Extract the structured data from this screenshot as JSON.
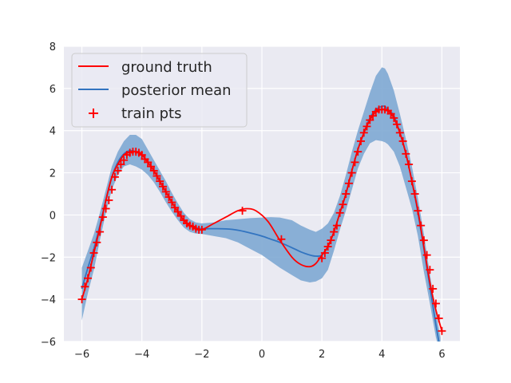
{
  "chart_data": {
    "type": "line",
    "title": "",
    "xlabel": "",
    "ylabel": "",
    "xlim": [
      -6.6,
      6.6
    ],
    "ylim": [
      -6,
      8
    ],
    "x_ticks": [
      -6,
      -4,
      -2,
      0,
      2,
      4,
      6
    ],
    "y_ticks": [
      -6,
      -4,
      -2,
      0,
      2,
      4,
      6,
      8
    ],
    "x_tick_labels": [
      "−6",
      "−4",
      "−2",
      "0",
      "2",
      "4",
      "6"
    ],
    "y_tick_labels": [
      "−6",
      "−4",
      "−2",
      "0",
      "2",
      "4",
      "6",
      "8"
    ],
    "grid": true,
    "legend_position": "top-left",
    "colors": {
      "ground_truth": "#ff0000",
      "posterior_mean": "#3274c0",
      "band": "#7ea9d3",
      "train": "#ff0000",
      "axes_bg": "#eaeaf2",
      "grid": "#ffffff"
    },
    "series": [
      {
        "name": "ground truth",
        "kind": "line",
        "x": [
          -6.0,
          -5.8,
          -5.6,
          -5.4,
          -5.2,
          -5.0,
          -4.8,
          -4.6,
          -4.4,
          -4.2,
          -4.0,
          -3.8,
          -3.6,
          -3.4,
          -3.2,
          -3.0,
          -2.8,
          -2.6,
          -2.4,
          -2.2,
          -2.0,
          -1.6,
          -1.2,
          -0.8,
          -0.5,
          -0.2,
          0.2,
          0.6,
          1.0,
          1.3,
          1.6,
          1.8,
          2.0,
          2.2,
          2.4,
          2.6,
          2.8,
          3.0,
          3.2,
          3.4,
          3.6,
          3.8,
          4.0,
          4.1,
          4.2,
          4.4,
          4.6,
          4.8,
          5.0,
          5.2,
          5.4,
          5.6,
          5.8,
          6.0
        ],
        "y": [
          -4.0,
          -3.0,
          -1.8,
          -0.6,
          0.7,
          1.8,
          2.4,
          2.85,
          3.0,
          3.0,
          2.85,
          2.5,
          2.1,
          1.6,
          1.1,
          0.6,
          0.15,
          -0.25,
          -0.5,
          -0.65,
          -0.7,
          -0.4,
          -0.1,
          0.2,
          0.3,
          0.2,
          -0.3,
          -1.2,
          -2.0,
          -2.35,
          -2.45,
          -2.3,
          -1.9,
          -1.5,
          -0.8,
          0.1,
          1.0,
          2.1,
          3.1,
          3.9,
          4.5,
          4.9,
          5.0,
          5.0,
          4.95,
          4.6,
          3.9,
          2.9,
          1.6,
          0.2,
          -1.5,
          -3.2,
          -4.5,
          -5.5
        ]
      },
      {
        "name": "posterior mean",
        "kind": "line",
        "x": [
          -6.0,
          -5.8,
          -5.6,
          -5.4,
          -5.2,
          -5.0,
          -4.8,
          -4.6,
          -4.4,
          -4.2,
          -4.0,
          -3.8,
          -3.6,
          -3.4,
          -3.2,
          -3.0,
          -2.8,
          -2.6,
          -2.4,
          -2.2,
          -2.0,
          -1.6,
          -1.2,
          -0.8,
          -0.4,
          0.0,
          0.3,
          0.6,
          1.0,
          1.3,
          1.6,
          1.8,
          2.0,
          2.2,
          2.4,
          2.6,
          2.8,
          3.0,
          3.2,
          3.4,
          3.6,
          3.8,
          4.0,
          4.1,
          4.2,
          4.4,
          4.6,
          4.8,
          5.0,
          5.2,
          5.4,
          5.6,
          5.8,
          5.95
        ],
        "y": [
          -3.5,
          -2.5,
          -1.6,
          -0.5,
          0.7,
          1.8,
          2.5,
          2.9,
          3.05,
          3.0,
          2.85,
          2.5,
          2.1,
          1.6,
          1.1,
          0.6,
          0.15,
          -0.25,
          -0.5,
          -0.6,
          -0.65,
          -0.65,
          -0.66,
          -0.72,
          -0.85,
          -1.0,
          -1.15,
          -1.3,
          -1.55,
          -1.75,
          -1.9,
          -1.95,
          -1.9,
          -1.5,
          -0.8,
          0.1,
          1.0,
          2.1,
          3.1,
          3.9,
          4.6,
          5.0,
          5.15,
          5.15,
          5.0,
          4.7,
          3.9,
          2.9,
          1.6,
          0.1,
          -1.6,
          -3.4,
          -5.2,
          -6.4
        ]
      },
      {
        "name": "posterior band",
        "kind": "band",
        "x": [
          -6.0,
          -5.8,
          -5.6,
          -5.4,
          -5.2,
          -5.0,
          -4.8,
          -4.6,
          -4.4,
          -4.2,
          -4.0,
          -3.8,
          -3.6,
          -3.4,
          -3.2,
          -3.0,
          -2.8,
          -2.6,
          -2.4,
          -2.2,
          -2.0,
          -1.6,
          -1.2,
          -0.8,
          -0.4,
          0.0,
          0.3,
          0.6,
          1.0,
          1.3,
          1.6,
          1.8,
          2.0,
          2.2,
          2.4,
          2.6,
          2.8,
          3.0,
          3.2,
          3.4,
          3.6,
          3.8,
          4.0,
          4.1,
          4.2,
          4.4,
          4.6,
          4.8,
          5.0,
          5.2,
          5.4,
          5.6,
          5.8,
          5.95
        ],
        "upper": [
          -2.5,
          -1.7,
          -0.9,
          0.1,
          1.2,
          2.3,
          3.0,
          3.5,
          3.8,
          3.8,
          3.6,
          3.1,
          2.6,
          2.1,
          1.6,
          1.05,
          0.55,
          0.1,
          -0.2,
          -0.35,
          -0.4,
          -0.35,
          -0.25,
          -0.2,
          -0.15,
          -0.12,
          -0.1,
          -0.12,
          -0.25,
          -0.5,
          -0.7,
          -0.8,
          -0.65,
          -0.4,
          0.1,
          0.9,
          1.9,
          3.0,
          4.0,
          4.9,
          5.8,
          6.6,
          7.0,
          6.95,
          6.7,
          5.9,
          4.8,
          3.6,
          2.3,
          0.8,
          -0.9,
          -2.8,
          -4.6,
          -5.8
        ],
        "lower": [
          -5.0,
          -3.7,
          -2.6,
          -1.2,
          0.1,
          1.2,
          1.9,
          2.3,
          2.4,
          2.3,
          2.15,
          1.9,
          1.55,
          1.1,
          0.6,
          0.15,
          -0.25,
          -0.6,
          -0.8,
          -0.88,
          -0.9,
          -1.0,
          -1.1,
          -1.3,
          -1.6,
          -1.9,
          -2.2,
          -2.5,
          -2.85,
          -3.1,
          -3.2,
          -3.15,
          -3.0,
          -2.6,
          -1.7,
          -0.7,
          0.2,
          1.2,
          2.2,
          2.9,
          3.4,
          3.55,
          3.5,
          3.45,
          3.35,
          3.0,
          2.3,
          1.3,
          0.3,
          -1.0,
          -2.7,
          -4.2,
          -5.8,
          -6.6
        ]
      },
      {
        "name": "train pts",
        "kind": "scatter",
        "x": [
          -6.0,
          -5.9,
          -5.8,
          -5.7,
          -5.6,
          -5.5,
          -5.4,
          -5.3,
          -5.2,
          -5.1,
          -5.0,
          -4.9,
          -4.8,
          -4.7,
          -4.6,
          -4.5,
          -4.4,
          -4.3,
          -4.2,
          -4.1,
          -4.0,
          -3.9,
          -3.8,
          -3.7,
          -3.6,
          -3.5,
          -3.4,
          -3.3,
          -3.2,
          -3.1,
          -3.0,
          -2.9,
          -2.8,
          -2.7,
          -2.6,
          -2.5,
          -2.4,
          -2.3,
          -2.2,
          -2.1,
          -2.0,
          -0.65,
          0.65,
          2.0,
          2.1,
          2.2,
          2.3,
          2.4,
          2.5,
          2.6,
          2.7,
          2.8,
          2.9,
          3.0,
          3.1,
          3.2,
          3.3,
          3.4,
          3.5,
          3.6,
          3.7,
          3.8,
          3.9,
          4.0,
          4.1,
          4.2,
          4.3,
          4.4,
          4.5,
          4.6,
          4.7,
          4.8,
          4.9,
          5.0,
          5.1,
          5.2,
          5.3,
          5.4,
          5.5,
          5.6,
          5.7,
          5.8,
          5.9,
          6.0
        ],
        "y": [
          -4.0,
          -3.4,
          -3.0,
          -2.5,
          -1.8,
          -1.3,
          -0.8,
          -0.1,
          0.3,
          0.7,
          1.2,
          1.8,
          2.1,
          2.4,
          2.6,
          2.85,
          2.95,
          3.0,
          3.0,
          2.95,
          2.85,
          2.65,
          2.5,
          2.3,
          2.1,
          1.85,
          1.6,
          1.35,
          1.1,
          0.85,
          0.6,
          0.35,
          0.15,
          -0.05,
          -0.25,
          -0.4,
          -0.5,
          -0.55,
          -0.65,
          -0.7,
          -0.7,
          0.2,
          -1.15,
          -2.05,
          -1.8,
          -1.5,
          -1.2,
          -0.8,
          -0.5,
          0.1,
          0.5,
          1.0,
          1.5,
          2.0,
          2.5,
          3.0,
          3.5,
          3.9,
          4.2,
          4.5,
          4.7,
          4.9,
          5.0,
          5.0,
          5.0,
          4.95,
          4.8,
          4.6,
          4.3,
          3.9,
          3.5,
          2.9,
          2.4,
          1.6,
          1.0,
          0.2,
          -0.5,
          -1.2,
          -1.9,
          -2.6,
          -3.5,
          -4.2,
          -4.9,
          -5.5
        ]
      }
    ]
  },
  "legend": {
    "items": [
      {
        "label": "ground truth",
        "kind": "line",
        "color": "#ff0000"
      },
      {
        "label": "posterior mean",
        "kind": "line",
        "color": "#3274c0"
      },
      {
        "label": "train pts",
        "kind": "marker",
        "color": "#ff0000"
      }
    ]
  }
}
